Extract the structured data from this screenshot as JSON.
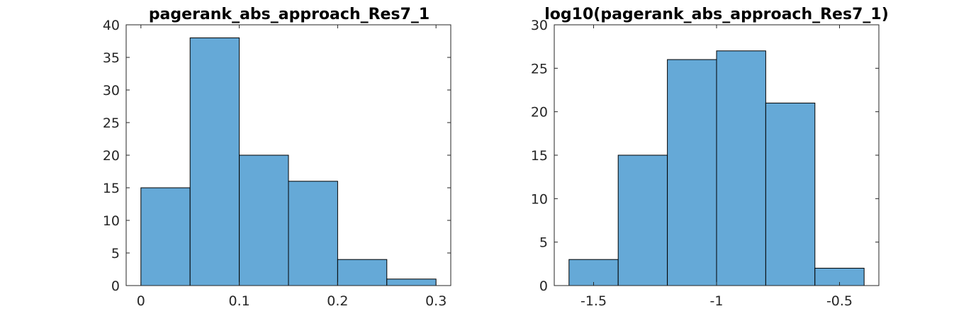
{
  "figure": {
    "bar_color": "#65A9D7",
    "edge_color": "#000000",
    "axis_color": "#262626"
  },
  "chart_data": [
    {
      "type": "bar",
      "title": "pagerank_abs_approach_Res7_1",
      "xlabel": "",
      "ylabel": "",
      "bin_edges": [
        0,
        0.05,
        0.1,
        0.15,
        0.2,
        0.25,
        0.3
      ],
      "values": [
        15,
        38,
        20,
        16,
        4,
        1
      ],
      "xlim": [
        -0.015,
        0.315
      ],
      "ylim": [
        0,
        40
      ],
      "xticks": [
        0,
        0.1,
        0.2,
        0.3
      ],
      "xtick_labels": [
        "0",
        "0.1",
        "0.2",
        "0.3"
      ],
      "yticks": [
        0,
        5,
        10,
        15,
        20,
        25,
        30,
        35,
        40
      ],
      "ytick_labels": [
        "0",
        "5",
        "10",
        "15",
        "20",
        "25",
        "30",
        "35",
        "40"
      ],
      "grid": false,
      "legend": "none"
    },
    {
      "type": "bar",
      "title": "log10(pagerank_abs_approach_Res7_1)",
      "xlabel": "",
      "ylabel": "",
      "bin_edges": [
        -1.6,
        -1.4,
        -1.2,
        -1.0,
        -0.8,
        -0.6,
        -0.4
      ],
      "values": [
        3,
        15,
        26,
        27,
        21,
        2
      ],
      "xlim": [
        -1.66,
        -0.34
      ],
      "ylim": [
        0,
        30
      ],
      "xticks": [
        -1.5,
        -1,
        -0.5
      ],
      "xtick_labels": [
        "-1.5",
        "-1",
        "-0.5"
      ],
      "yticks": [
        0,
        5,
        10,
        15,
        20,
        25,
        30
      ],
      "ytick_labels": [
        "0",
        "5",
        "10",
        "15",
        "20",
        "25",
        "30"
      ],
      "grid": false,
      "legend": "none"
    }
  ]
}
